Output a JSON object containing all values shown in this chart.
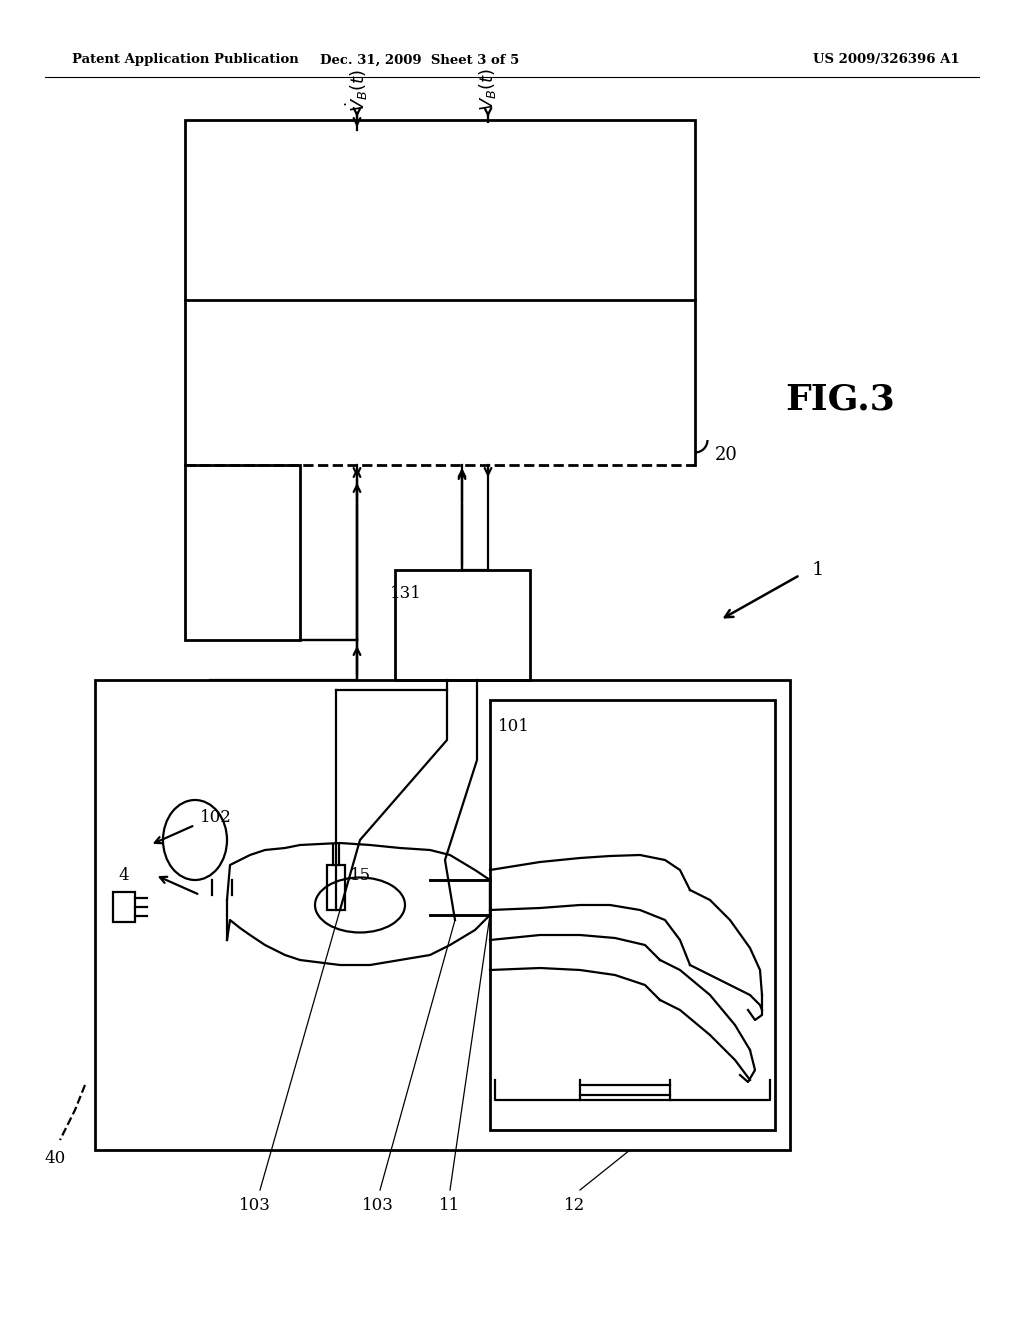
{
  "bg_color": "#ffffff",
  "header_left": "Patent Application Publication",
  "header_center": "Dec. 31, 2009  Sheet 3 of 5",
  "header_right": "US 2009/326396 A1",
  "fig_label": "FIG.3",
  "label_1": "1",
  "label_20": "20",
  "label_131": "131",
  "label_102": "102",
  "label_15": "15",
  "label_101": "101",
  "label_4": "4",
  "label_40": "40",
  "label_103a": "103",
  "label_103b": "103",
  "label_11": "11",
  "label_12": "12",
  "line_color": "#000000",
  "lw": 1.6,
  "lw_thick": 2.0
}
